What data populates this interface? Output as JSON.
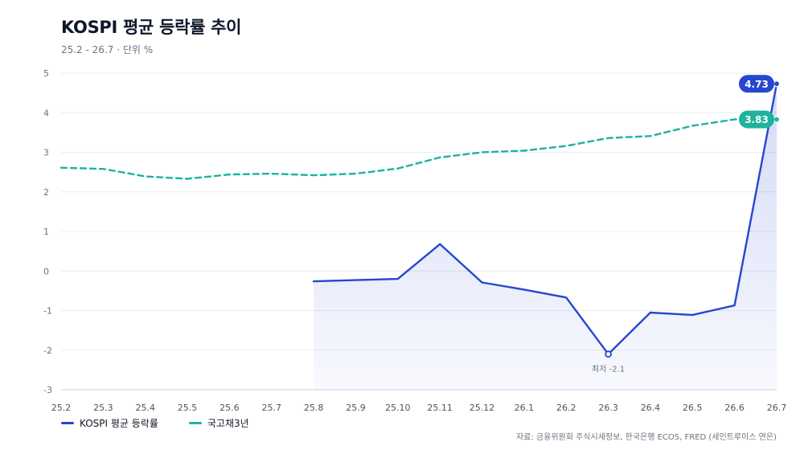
{
  "header": {
    "title": "KOSPI 평균 등락률 추이",
    "subtitle": "25.2 - 26.7 · 단위 %"
  },
  "legend": [
    {
      "label": "KOSPI 평균 등락률",
      "color": "#2547d0"
    },
    {
      "label": "국고채3년",
      "color": "#1db39c"
    }
  ],
  "source": "자료: 금융위원회 주식시세정보, 한국은행 ECOS, FRED (세인트루이스 연은)",
  "chart_data": {
    "type": "line",
    "categories": [
      "25.2",
      "25.3",
      "25.4",
      "25.5",
      "25.6",
      "25.7",
      "25.8",
      "25.9",
      "25.10",
      "25.11",
      "25.12",
      "26.1",
      "26.2",
      "26.3",
      "26.4",
      "26.5",
      "26.6",
      "26.7"
    ],
    "yticks": [
      5,
      4,
      3,
      2,
      1,
      0,
      -1,
      -2,
      -3
    ],
    "ylim": [
      -3,
      5
    ],
    "grid": true,
    "series": [
      {
        "name": "KOSPI 평균 등락률",
        "color": "#2547d0",
        "style": "solid",
        "area": true,
        "values": [
          null,
          null,
          null,
          null,
          null,
          null,
          -0.26,
          -0.23,
          -0.2,
          0.68,
          -0.29,
          -0.47,
          -0.67,
          -2.1,
          -1.05,
          -1.11,
          -0.87,
          4.73
        ]
      },
      {
        "name": "국고채3년",
        "color": "#1db39c",
        "style": "dashed",
        "area": false,
        "values": [
          2.61,
          2.58,
          2.39,
          2.33,
          2.44,
          2.46,
          2.42,
          2.46,
          2.59,
          2.87,
          3.0,
          3.04,
          3.16,
          3.36,
          3.41,
          3.67,
          3.83,
          3.83
        ]
      }
    ],
    "end_labels": [
      "4.73",
      "3.83"
    ],
    "annotation": {
      "text": "최저 -2.1",
      "series": 0,
      "index": 13
    }
  }
}
